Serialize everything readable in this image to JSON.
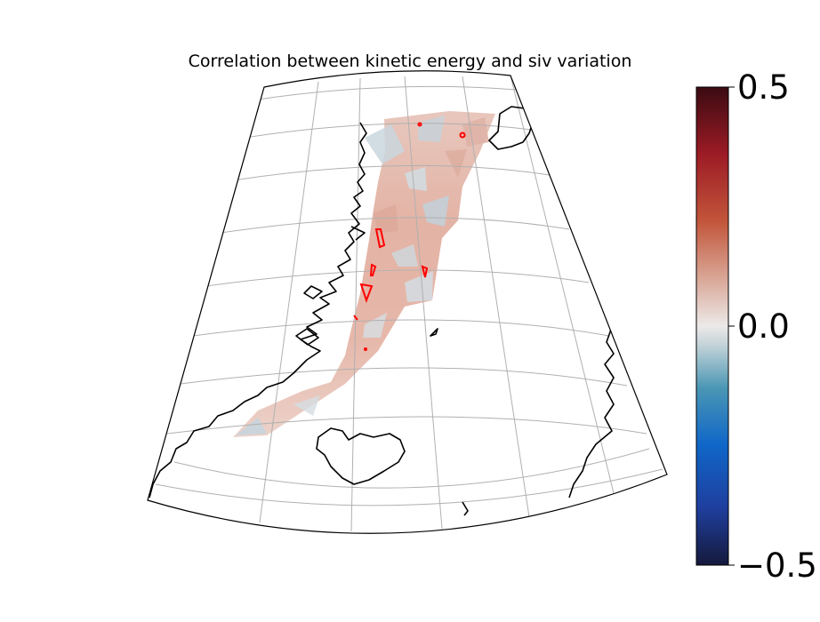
{
  "title": "Correlation between kinetic energy and siv variation",
  "colorbar": {
    "ticks": [
      {
        "value": 0.5,
        "label": "0.5"
      },
      {
        "value": 0.0,
        "label": "0.0"
      },
      {
        "value": -0.5,
        "label": "−0.5"
      }
    ],
    "range": [
      -0.5,
      0.5
    ],
    "colormap": [
      "#15193b",
      "#1f3f9e",
      "#0f66c8",
      "#4a96b4",
      "#c3d3d8",
      "#ece9e8",
      "#d9a696",
      "#c2553a",
      "#9c1b25",
      "#3b0b12"
    ]
  },
  "map": {
    "projection": "conic",
    "contour_color": "#ff0000",
    "field_colors": {
      "positive": "#e2b1a4",
      "negative": "#c9d6de",
      "neutral": "#f2eeec"
    }
  }
}
